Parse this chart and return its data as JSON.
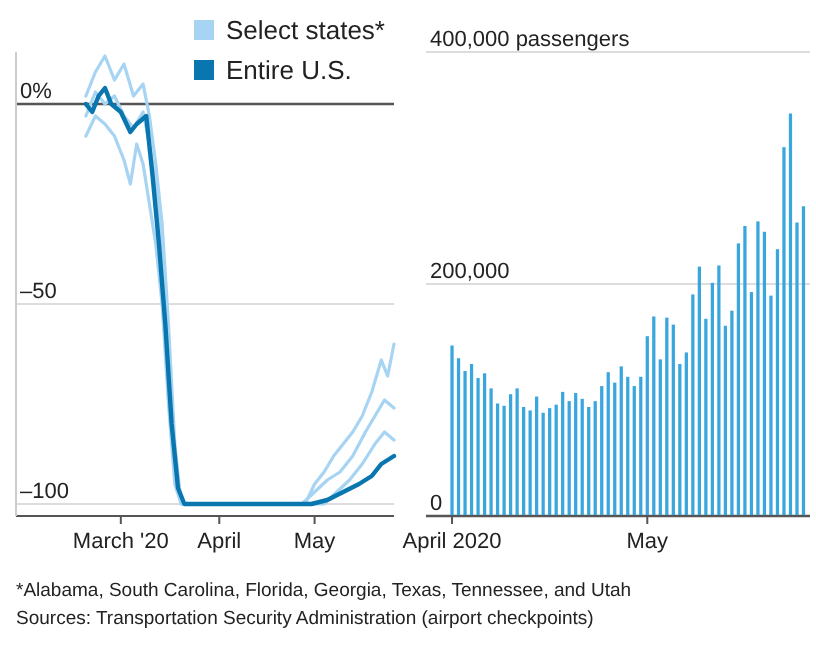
{
  "chart_data": [
    {
      "type": "line",
      "xlim": [
        "2020-01-28",
        "2020-05-26"
      ],
      "ylim": [
        -103,
        13
      ],
      "xticks": [
        {
          "value": "2020-03-01",
          "label": "March '20"
        },
        {
          "value": "2020-04-01",
          "label": "April"
        },
        {
          "value": "2020-05-01",
          "label": "May"
        }
      ],
      "yticks": [
        {
          "value": 0,
          "label": "0%"
        },
        {
          "value": -50,
          "label": "–50"
        },
        {
          "value": -100,
          "label": "–100"
        }
      ],
      "grid": "y",
      "legend": "top right",
      "line_style": "solid",
      "series": [
        {
          "name": "Select states*",
          "color": "#a6d4f2",
          "x": [
            "2020-02-19",
            "2020-02-22",
            "2020-02-25",
            "2020-02-28",
            "2020-03-02",
            "2020-03-05",
            "2020-03-08",
            "2020-03-10",
            "2020-03-12",
            "2020-03-14",
            "2020-03-16",
            "2020-03-18",
            "2020-03-20",
            "2020-04-28",
            "2020-05-01",
            "2020-05-04",
            "2020-05-07",
            "2020-05-10",
            "2020-05-13",
            "2020-05-16",
            "2020-05-19",
            "2020-05-22",
            "2020-05-24",
            "2020-05-26"
          ],
          "values": [
            2,
            8,
            12,
            6,
            10,
            2,
            5,
            -3,
            -15,
            -30,
            -55,
            -85,
            -100,
            -100,
            -95,
            -92,
            -88,
            -85,
            -82,
            -78,
            -72,
            -64,
            -68,
            -60
          ]
        },
        {
          "color": "#a6d4f2",
          "x": [
            "2020-02-19",
            "2020-02-22",
            "2020-02-25",
            "2020-02-28",
            "2020-03-02",
            "2020-03-04",
            "2020-03-06",
            "2020-03-08",
            "2020-03-10",
            "2020-03-12",
            "2020-03-14",
            "2020-03-16",
            "2020-03-18",
            "2020-03-20",
            "2020-05-04",
            "2020-05-08",
            "2020-05-12",
            "2020-05-16",
            "2020-05-20",
            "2020-05-23",
            "2020-05-26"
          ],
          "values": [
            -8,
            -3,
            -5,
            -8,
            -14,
            -20,
            -10,
            -15,
            -25,
            -35,
            -50,
            -75,
            -95,
            -100,
            -100,
            -97,
            -94,
            -90,
            -85,
            -82,
            -84
          ]
        },
        {
          "color": "#a6d4f2",
          "x": [
            "2020-02-19",
            "2020-02-22",
            "2020-02-25",
            "2020-02-28",
            "2020-03-02",
            "2020-03-05",
            "2020-03-08",
            "2020-03-10",
            "2020-03-12",
            "2020-03-14",
            "2020-03-16",
            "2020-03-18",
            "2020-03-20",
            "2020-04-27",
            "2020-05-01",
            "2020-05-05",
            "2020-05-09",
            "2020-05-13",
            "2020-05-17",
            "2020-05-20",
            "2020-05-23",
            "2020-05-26"
          ],
          "values": [
            -3,
            3,
            0,
            2,
            -3,
            -6,
            -2,
            -10,
            -20,
            -38,
            -62,
            -90,
            -100,
            -100,
            -97,
            -94,
            -92,
            -88,
            -82,
            -78,
            -74,
            -76
          ]
        },
        {
          "name": "Entire U.S.",
          "color": "#0a76b0",
          "x": [
            "2020-02-19",
            "2020-02-21",
            "2020-02-23",
            "2020-02-25",
            "2020-02-27",
            "2020-03-01",
            "2020-03-04",
            "2020-03-06",
            "2020-03-09",
            "2020-03-11",
            "2020-03-13",
            "2020-03-15",
            "2020-03-17",
            "2020-03-19",
            "2020-03-21",
            "2020-04-30",
            "2020-05-05",
            "2020-05-10",
            "2020-05-15",
            "2020-05-19",
            "2020-05-22",
            "2020-05-26"
          ],
          "values": [
            0,
            -2,
            2,
            4,
            0,
            -2,
            -7,
            -5,
            -3,
            -18,
            -35,
            -55,
            -80,
            -96,
            -100,
            -100,
            -99,
            -97,
            -95,
            -93,
            -90,
            -88
          ]
        }
      ],
      "annotations": [
        "*Alabama, South Carolina, Florida, Georgia, Texas, Tennessee, and Utah",
        "Sources: Transportation Security Administration (airport checkpoints)"
      ]
    },
    {
      "type": "bar",
      "xlim": [
        "2020-03-28",
        "2020-05-26"
      ],
      "xticks": [
        {
          "value": "2020-04-01",
          "label": "April 2020"
        },
        {
          "value": "2020-05-01",
          "label": "May"
        }
      ],
      "ylim": [
        0,
        400000
      ],
      "yticks": [
        {
          "value": 0,
          "label": "0"
        },
        {
          "value": 200000,
          "label": "200,000"
        },
        {
          "value": 400000,
          "label": "400,000 passengers"
        }
      ],
      "grid": "y",
      "color": "#3aa6de",
      "x": [
        "2020-04-01",
        "2020-04-02",
        "2020-04-03",
        "2020-04-04",
        "2020-04-05",
        "2020-04-06",
        "2020-04-07",
        "2020-04-08",
        "2020-04-09",
        "2020-04-10",
        "2020-04-11",
        "2020-04-12",
        "2020-04-13",
        "2020-04-14",
        "2020-04-15",
        "2020-04-16",
        "2020-04-17",
        "2020-04-18",
        "2020-04-19",
        "2020-04-20",
        "2020-04-21",
        "2020-04-22",
        "2020-04-23",
        "2020-04-24",
        "2020-04-25",
        "2020-04-26",
        "2020-04-27",
        "2020-04-28",
        "2020-04-29",
        "2020-04-30",
        "2020-05-01",
        "2020-05-02",
        "2020-05-03",
        "2020-05-04",
        "2020-05-05",
        "2020-05-06",
        "2020-05-07",
        "2020-05-08",
        "2020-05-09",
        "2020-05-10",
        "2020-05-11",
        "2020-05-12",
        "2020-05-13",
        "2020-05-14",
        "2020-05-15",
        "2020-05-16",
        "2020-05-17",
        "2020-05-18",
        "2020-05-19",
        "2020-05-20",
        "2020-05-21",
        "2020-05-22",
        "2020-05-23",
        "2020-05-24",
        "2020-05-25"
      ],
      "values": [
        147000,
        136000,
        125000,
        131000,
        119000,
        123000,
        110000,
        97000,
        95000,
        105000,
        110000,
        94000,
        91000,
        103000,
        89000,
        93000,
        96000,
        107000,
        99000,
        106000,
        101000,
        94000,
        99000,
        112000,
        124000,
        115000,
        129000,
        120000,
        112000,
        120000,
        155000,
        172000,
        135000,
        171000,
        165000,
        131000,
        141000,
        191000,
        215000,
        170000,
        201000,
        216000,
        164000,
        177000,
        235000,
        250000,
        193000,
        254000,
        245000,
        190000,
        230000,
        318000,
        347000,
        253000,
        267000
      ]
    }
  ]
}
